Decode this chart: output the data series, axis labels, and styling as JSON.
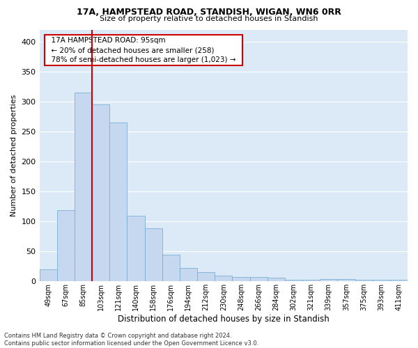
{
  "title1": "17A, HAMPSTEAD ROAD, STANDISH, WIGAN, WN6 0RR",
  "title2": "Size of property relative to detached houses in Standish",
  "xlabel": "Distribution of detached houses by size in Standish",
  "ylabel": "Number of detached properties",
  "bin_labels": [
    "49sqm",
    "67sqm",
    "85sqm",
    "103sqm",
    "121sqm",
    "140sqm",
    "158sqm",
    "176sqm",
    "194sqm",
    "212sqm",
    "230sqm",
    "248sqm",
    "266sqm",
    "284sqm",
    "302sqm",
    "321sqm",
    "339sqm",
    "357sqm",
    "375sqm",
    "393sqm",
    "411sqm"
  ],
  "bar_heights": [
    20,
    119,
    315,
    295,
    265,
    109,
    88,
    45,
    22,
    15,
    10,
    7,
    7,
    6,
    3,
    3,
    4,
    4,
    3,
    3,
    3
  ],
  "bar_color": "#c5d8f0",
  "bar_edge_color": "#7aafd4",
  "property_line_color": "#cc0000",
  "annotation_box_color": "#cc0000",
  "background_color": "#dce9f7",
  "footer_text": "Contains HM Land Registry data © Crown copyright and database right 2024.\nContains public sector information licensed under the Open Government Licence v3.0.",
  "ylim": [
    0,
    420
  ],
  "yticks": [
    0,
    50,
    100,
    150,
    200,
    250,
    300,
    350,
    400
  ]
}
